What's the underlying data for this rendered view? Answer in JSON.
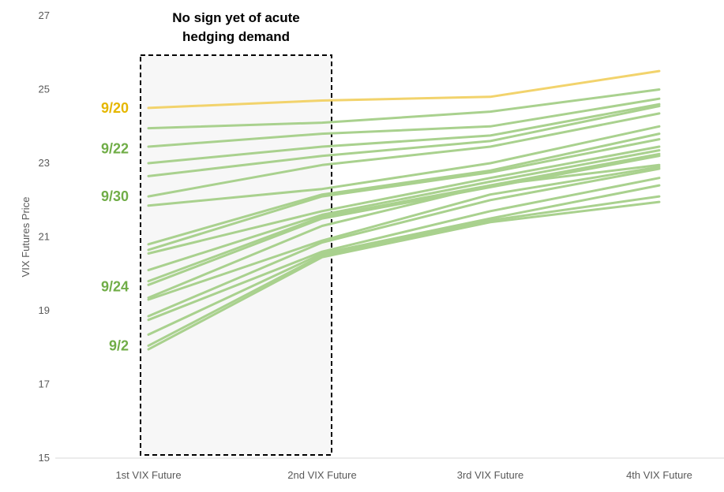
{
  "chart_data": {
    "type": "line",
    "categories": [
      "1st VIX Future",
      "2nd VIX Future",
      "3rd VIX Future",
      "4th VIX Future"
    ],
    "ylabel": "VIX Futures Price",
    "xlabel": "",
    "ylim": [
      15,
      27
    ],
    "yticks": [
      15,
      17,
      19,
      21,
      23,
      25,
      27
    ],
    "grid": false,
    "series": [
      {
        "name": "9/20",
        "highlight": true,
        "values": [
          24.5,
          24.7,
          24.8,
          25.5
        ]
      },
      {
        "values": [
          23.95,
          24.1,
          24.4,
          25.0
        ]
      },
      {
        "values": [
          23.45,
          23.8,
          24.0,
          24.75
        ]
      },
      {
        "values": [
          23.0,
          23.45,
          23.75,
          24.6
        ]
      },
      {
        "values": [
          22.65,
          23.2,
          23.6,
          24.55
        ]
      },
      {
        "values": [
          22.1,
          22.95,
          23.45,
          24.35
        ]
      },
      {
        "values": [
          21.85,
          22.3,
          23.0,
          24.0
        ]
      },
      {
        "values": [
          20.8,
          22.15,
          22.8,
          23.8
        ]
      },
      {
        "values": [
          20.65,
          22.1,
          22.75,
          23.65
        ]
      },
      {
        "values": [
          20.55,
          21.7,
          22.6,
          23.45
        ]
      },
      {
        "values": [
          20.1,
          21.6,
          22.5,
          23.35
        ]
      },
      {
        "values": [
          19.8,
          21.55,
          22.4,
          23.25
        ]
      },
      {
        "values": [
          19.7,
          21.5,
          22.35,
          23.2
        ]
      },
      {
        "values": [
          19.35,
          21.3,
          22.4,
          22.95
        ]
      },
      {
        "values": [
          19.3,
          20.9,
          22.15,
          22.9
        ]
      },
      {
        "values": [
          18.85,
          20.85,
          22.0,
          22.85
        ]
      },
      {
        "values": [
          18.75,
          20.6,
          21.7,
          22.6
        ]
      },
      {
        "values": [
          18.35,
          20.55,
          21.5,
          22.4
        ]
      },
      {
        "values": [
          18.05,
          20.5,
          21.45,
          22.1
        ]
      },
      {
        "values": [
          17.95,
          20.45,
          21.4,
          21.95
        ]
      }
    ],
    "date_labels": [
      {
        "text": "9/20",
        "y": 24.5,
        "highlight": true
      },
      {
        "text": "9/22",
        "y": 23.4
      },
      {
        "text": "9/30",
        "y": 22.1
      },
      {
        "text": "9/24",
        "y": 19.65
      },
      {
        "text": "9/2",
        "y": 18.05
      }
    ],
    "annotation": {
      "lines": [
        "No sign yet of acute",
        "hedging demand"
      ]
    },
    "colors": {
      "highlight": "#F2D36C",
      "highlight_label": "#E5B700",
      "series": "#A9D18E",
      "label": "#70AD47",
      "box_fill": "#F7F7F7",
      "box_border": "#000000",
      "axis": "#D9D9D9",
      "tick": "#595959"
    }
  }
}
